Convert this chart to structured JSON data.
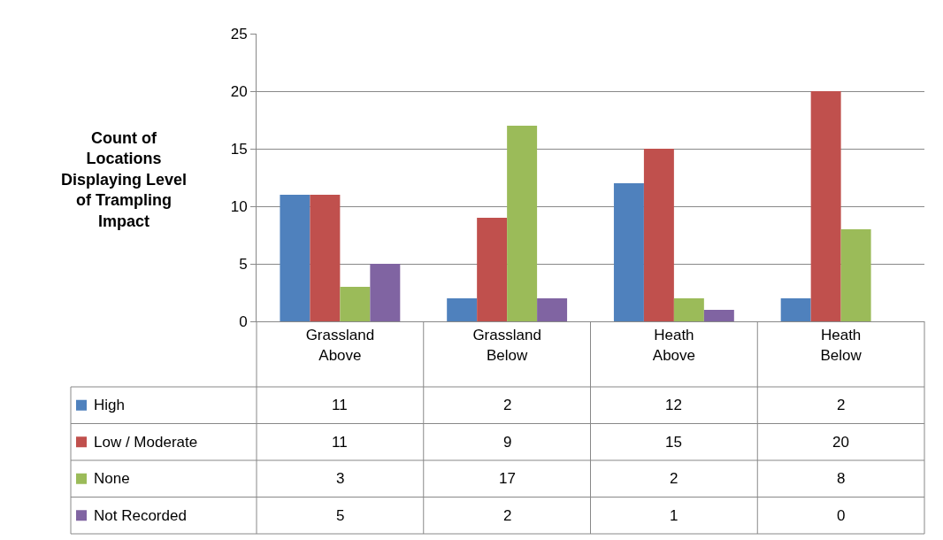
{
  "chart_data": {
    "type": "bar",
    "ylabel": "Count of Locations Displaying Level of Trampling Impact",
    "categories": [
      "Grassland Above",
      "Grassland Below",
      "Heath Above",
      "Heath Below"
    ],
    "series": [
      {
        "name": "High",
        "color": "#4f81bd",
        "values": [
          11,
          2,
          12,
          2
        ]
      },
      {
        "name": "Low / Moderate",
        "color": "#c0504d",
        "values": [
          11,
          9,
          15,
          20
        ]
      },
      {
        "name": "None",
        "color": "#9bbb59",
        "values": [
          3,
          17,
          2,
          8
        ]
      },
      {
        "name": "Not Recorded",
        "color": "#8064a2",
        "values": [
          5,
          2,
          1,
          0
        ]
      }
    ],
    "ylim": [
      0,
      25
    ],
    "yticks": [
      0,
      5,
      10,
      15,
      20,
      25
    ],
    "grid": "y",
    "data_labels": true,
    "legend": "bottom left"
  }
}
